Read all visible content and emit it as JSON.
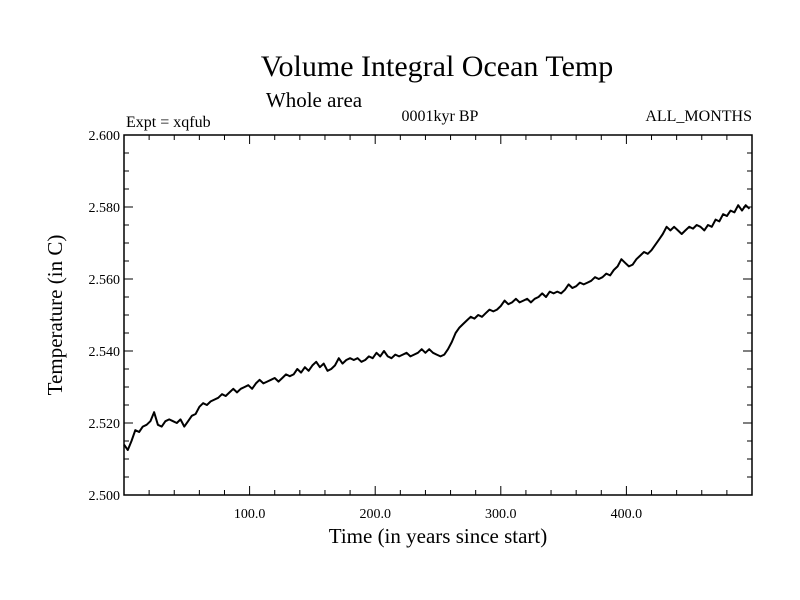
{
  "chart_data": {
    "type": "line",
    "title": "Volume Integral Ocean Temp",
    "subtitle": "Whole area",
    "header_left": "Expt = xqfub",
    "header_center": "0001kyr BP",
    "header_right": "ALL_MONTHS",
    "xlabel": "Time (in years since start)",
    "ylabel": "Temperature (in C)",
    "xlim": [
      0,
      500
    ],
    "ylim": [
      2.5,
      2.6
    ],
    "x_ticks": [
      100,
      200,
      300,
      400
    ],
    "x_tick_labels": [
      "100.0",
      "200.0",
      "300.0",
      "400.0"
    ],
    "y_ticks": [
      2.5,
      2.52,
      2.54,
      2.56,
      2.58,
      2.6
    ],
    "y_tick_labels": [
      "2.500",
      "2.520",
      "2.540",
      "2.560",
      "2.580",
      "2.600"
    ],
    "series": [
      {
        "name": "Volume Integral Ocean Temp",
        "color": "#000000",
        "points": [
          [
            0,
            2.514
          ],
          [
            3,
            2.5125
          ],
          [
            6,
            2.515
          ],
          [
            9,
            2.518
          ],
          [
            12,
            2.5175
          ],
          [
            15,
            2.519
          ],
          [
            18,
            2.5195
          ],
          [
            21,
            2.5205
          ],
          [
            24,
            2.523
          ],
          [
            27,
            2.5195
          ],
          [
            30,
            2.519
          ],
          [
            33,
            2.5205
          ],
          [
            36,
            2.521
          ],
          [
            39,
            2.5205
          ],
          [
            42,
            2.52
          ],
          [
            45,
            2.521
          ],
          [
            48,
            2.519
          ],
          [
            51,
            2.5205
          ],
          [
            54,
            2.522
          ],
          [
            57,
            2.5225
          ],
          [
            60,
            2.5245
          ],
          [
            63,
            2.5255
          ],
          [
            66,
            2.525
          ],
          [
            69,
            2.526
          ],
          [
            72,
            2.5265
          ],
          [
            75,
            2.527
          ],
          [
            78,
            2.528
          ],
          [
            81,
            2.5275
          ],
          [
            84,
            2.5285
          ],
          [
            87,
            2.5295
          ],
          [
            90,
            2.5285
          ],
          [
            93,
            2.5295
          ],
          [
            96,
            2.53
          ],
          [
            99,
            2.5305
          ],
          [
            102,
            2.5295
          ],
          [
            105,
            2.531
          ],
          [
            108,
            2.532
          ],
          [
            111,
            2.531
          ],
          [
            114,
            2.5315
          ],
          [
            117,
            2.532
          ],
          [
            120,
            2.5325
          ],
          [
            123,
            2.5315
          ],
          [
            126,
            2.5325
          ],
          [
            129,
            2.5335
          ],
          [
            132,
            2.533
          ],
          [
            135,
            2.5335
          ],
          [
            138,
            2.535
          ],
          [
            141,
            2.534
          ],
          [
            144,
            2.5355
          ],
          [
            147,
            2.5345
          ],
          [
            150,
            2.536
          ],
          [
            153,
            2.537
          ],
          [
            156,
            2.5355
          ],
          [
            159,
            2.5365
          ],
          [
            162,
            2.5345
          ],
          [
            165,
            2.535
          ],
          [
            168,
            2.536
          ],
          [
            171,
            2.538
          ],
          [
            174,
            2.5365
          ],
          [
            177,
            2.5375
          ],
          [
            180,
            2.538
          ],
          [
            183,
            2.5375
          ],
          [
            186,
            2.538
          ],
          [
            189,
            2.537
          ],
          [
            192,
            2.5375
          ],
          [
            195,
            2.5385
          ],
          [
            198,
            2.538
          ],
          [
            201,
            2.5395
          ],
          [
            204,
            2.5385
          ],
          [
            207,
            2.54
          ],
          [
            210,
            2.5385
          ],
          [
            213,
            2.538
          ],
          [
            216,
            2.539
          ],
          [
            219,
            2.5385
          ],
          [
            222,
            2.539
          ],
          [
            225,
            2.5395
          ],
          [
            228,
            2.5385
          ],
          [
            231,
            2.539
          ],
          [
            234,
            2.5395
          ],
          [
            237,
            2.5405
          ],
          [
            240,
            2.5395
          ],
          [
            243,
            2.5405
          ],
          [
            246,
            2.5395
          ],
          [
            249,
            2.539
          ],
          [
            252,
            2.5385
          ],
          [
            255,
            2.539
          ],
          [
            258,
            2.5405
          ],
          [
            261,
            2.5425
          ],
          [
            264,
            2.545
          ],
          [
            267,
            2.5465
          ],
          [
            270,
            2.5475
          ],
          [
            273,
            2.5485
          ],
          [
            276,
            2.5495
          ],
          [
            279,
            2.549
          ],
          [
            282,
            2.55
          ],
          [
            285,
            2.5495
          ],
          [
            288,
            2.5505
          ],
          [
            291,
            2.5515
          ],
          [
            294,
            2.551
          ],
          [
            297,
            2.5515
          ],
          [
            300,
            2.5525
          ],
          [
            303,
            2.554
          ],
          [
            306,
            2.553
          ],
          [
            309,
            2.5535
          ],
          [
            312,
            2.5545
          ],
          [
            315,
            2.5535
          ],
          [
            318,
            2.554
          ],
          [
            321,
            2.5545
          ],
          [
            324,
            2.5535
          ],
          [
            327,
            2.5545
          ],
          [
            330,
            2.555
          ],
          [
            333,
            2.556
          ],
          [
            336,
            2.555
          ],
          [
            339,
            2.5565
          ],
          [
            342,
            2.556
          ],
          [
            345,
            2.5565
          ],
          [
            348,
            2.556
          ],
          [
            351,
            2.557
          ],
          [
            354,
            2.5585
          ],
          [
            357,
            2.5575
          ],
          [
            360,
            2.558
          ],
          [
            363,
            2.559
          ],
          [
            366,
            2.5585
          ],
          [
            369,
            2.559
          ],
          [
            372,
            2.5595
          ],
          [
            375,
            2.5605
          ],
          [
            378,
            2.56
          ],
          [
            381,
            2.5605
          ],
          [
            384,
            2.5615
          ],
          [
            387,
            2.561
          ],
          [
            390,
            2.5625
          ],
          [
            393,
            2.5635
          ],
          [
            396,
            2.5655
          ],
          [
            399,
            2.5645
          ],
          [
            402,
            2.5635
          ],
          [
            405,
            2.564
          ],
          [
            408,
            2.5655
          ],
          [
            411,
            2.5665
          ],
          [
            414,
            2.5675
          ],
          [
            417,
            2.567
          ],
          [
            420,
            2.568
          ],
          [
            423,
            2.5695
          ],
          [
            426,
            2.571
          ],
          [
            429,
            2.5725
          ],
          [
            432,
            2.5745
          ],
          [
            435,
            2.5735
          ],
          [
            438,
            2.5745
          ],
          [
            441,
            2.5735
          ],
          [
            444,
            2.5725
          ],
          [
            447,
            2.5735
          ],
          [
            450,
            2.5745
          ],
          [
            453,
            2.574
          ],
          [
            456,
            2.575
          ],
          [
            459,
            2.5745
          ],
          [
            462,
            2.5735
          ],
          [
            465,
            2.575
          ],
          [
            468,
            2.5745
          ],
          [
            471,
            2.5765
          ],
          [
            474,
            2.576
          ],
          [
            477,
            2.578
          ],
          [
            480,
            2.5775
          ],
          [
            483,
            2.579
          ],
          [
            486,
            2.5785
          ],
          [
            489,
            2.5805
          ],
          [
            492,
            2.579
          ],
          [
            495,
            2.5805
          ],
          [
            498,
            2.5795
          ]
        ]
      }
    ]
  }
}
